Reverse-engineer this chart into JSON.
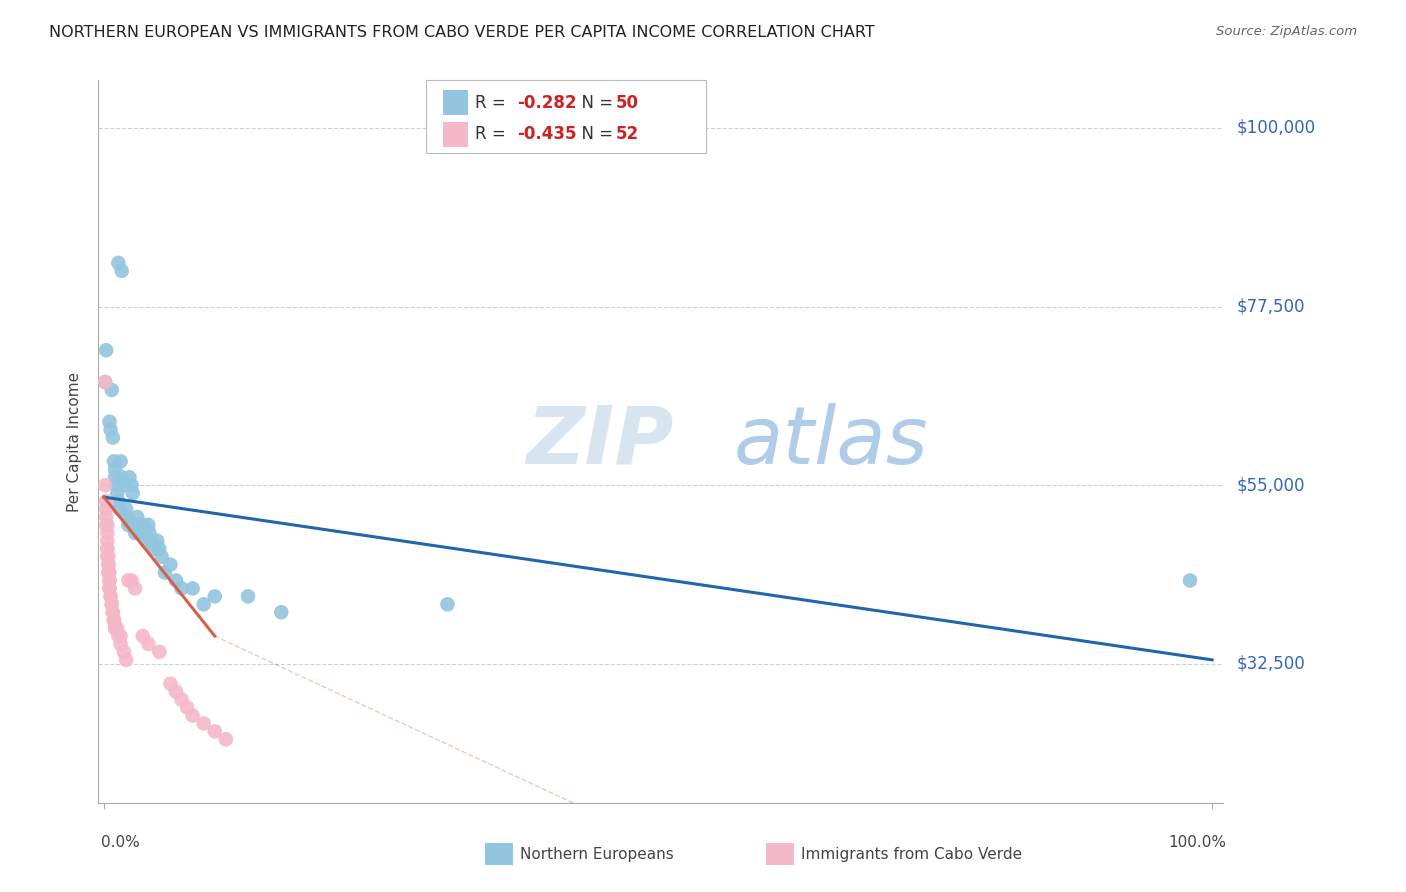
{
  "title": "NORTHERN EUROPEAN VS IMMIGRANTS FROM CABO VERDE PER CAPITA INCOME CORRELATION CHART",
  "source": "Source: ZipAtlas.com",
  "ylabel": "Per Capita Income",
  "ytick_labels": [
    "$32,500",
    "$55,000",
    "$77,500",
    "$100,000"
  ],
  "ytick_values": [
    32500,
    55000,
    77500,
    100000
  ],
  "ymin": 15000,
  "ymax": 106000,
  "xmin": -0.005,
  "xmax": 1.01,
  "legend1_r": "-0.282",
  "legend1_n": "50",
  "legend2_r": "-0.435",
  "legend2_n": "52",
  "blue_color": "#92c5de",
  "pink_color": "#f4b8c8",
  "line_blue": "#2166ac",
  "line_pink": "#d6604d",
  "blue_scatter": [
    [
      0.002,
      72000
    ],
    [
      0.013,
      83000
    ],
    [
      0.016,
      82000
    ],
    [
      0.001,
      68000
    ],
    [
      0.005,
      63000
    ],
    [
      0.006,
      62000
    ],
    [
      0.007,
      67000
    ],
    [
      0.008,
      61000
    ],
    [
      0.009,
      58000
    ],
    [
      0.01,
      57000
    ],
    [
      0.01,
      56000
    ],
    [
      0.011,
      55000
    ],
    [
      0.012,
      54000
    ],
    [
      0.013,
      53000
    ],
    [
      0.014,
      52000
    ],
    [
      0.015,
      58000
    ],
    [
      0.016,
      56000
    ],
    [
      0.018,
      55000
    ],
    [
      0.02,
      52000
    ],
    [
      0.021,
      51000
    ],
    [
      0.022,
      50000
    ],
    [
      0.023,
      56000
    ],
    [
      0.025,
      55000
    ],
    [
      0.026,
      54000
    ],
    [
      0.027,
      50000
    ],
    [
      0.028,
      49000
    ],
    [
      0.03,
      51000
    ],
    [
      0.031,
      50000
    ],
    [
      0.033,
      49000
    ],
    [
      0.035,
      50000
    ],
    [
      0.036,
      49000
    ],
    [
      0.038,
      48000
    ],
    [
      0.04,
      50000
    ],
    [
      0.041,
      49000
    ],
    [
      0.043,
      48000
    ],
    [
      0.045,
      47000
    ],
    [
      0.048,
      48000
    ],
    [
      0.05,
      47000
    ],
    [
      0.052,
      46000
    ],
    [
      0.055,
      44000
    ],
    [
      0.06,
      45000
    ],
    [
      0.065,
      43000
    ],
    [
      0.07,
      42000
    ],
    [
      0.08,
      42000
    ],
    [
      0.09,
      40000
    ],
    [
      0.1,
      41000
    ],
    [
      0.13,
      41000
    ],
    [
      0.16,
      39000
    ],
    [
      0.31,
      40000
    ],
    [
      0.98,
      43000
    ]
  ],
  "pink_scatter": [
    [
      0.001,
      68000
    ],
    [
      0.001,
      55000
    ],
    [
      0.002,
      53000
    ],
    [
      0.002,
      52000
    ],
    [
      0.002,
      51000
    ],
    [
      0.002,
      50000
    ],
    [
      0.003,
      50000
    ],
    [
      0.003,
      49000
    ],
    [
      0.003,
      48000
    ],
    [
      0.003,
      47000
    ],
    [
      0.003,
      47000
    ],
    [
      0.003,
      46000
    ],
    [
      0.004,
      46000
    ],
    [
      0.004,
      45000
    ],
    [
      0.004,
      45000
    ],
    [
      0.004,
      44000
    ],
    [
      0.004,
      44000
    ],
    [
      0.005,
      44000
    ],
    [
      0.005,
      43000
    ],
    [
      0.005,
      43000
    ],
    [
      0.005,
      42000
    ],
    [
      0.005,
      42000
    ],
    [
      0.006,
      41000
    ],
    [
      0.006,
      41000
    ],
    [
      0.007,
      40000
    ],
    [
      0.007,
      40000
    ],
    [
      0.008,
      39000
    ],
    [
      0.008,
      39000
    ],
    [
      0.009,
      38000
    ],
    [
      0.009,
      38000
    ],
    [
      0.01,
      37000
    ],
    [
      0.01,
      37000
    ],
    [
      0.012,
      37000
    ],
    [
      0.013,
      36000
    ],
    [
      0.015,
      36000
    ],
    [
      0.015,
      35000
    ],
    [
      0.018,
      34000
    ],
    [
      0.02,
      33000
    ],
    [
      0.022,
      43000
    ],
    [
      0.025,
      43000
    ],
    [
      0.028,
      42000
    ],
    [
      0.035,
      36000
    ],
    [
      0.04,
      35000
    ],
    [
      0.05,
      34000
    ],
    [
      0.06,
      30000
    ],
    [
      0.065,
      29000
    ],
    [
      0.07,
      28000
    ],
    [
      0.075,
      27000
    ],
    [
      0.08,
      26000
    ],
    [
      0.09,
      25000
    ],
    [
      0.1,
      24000
    ],
    [
      0.11,
      23000
    ]
  ],
  "blue_line": [
    [
      0.0,
      53500
    ],
    [
      1.0,
      33000
    ]
  ],
  "pink_line_solid": [
    [
      0.0,
      53500
    ],
    [
      0.1,
      36000
    ]
  ],
  "pink_line_dash": [
    [
      0.1,
      36000
    ],
    [
      0.5,
      10000
    ]
  ],
  "bg_color": "#ffffff",
  "grid_color": "#d0d0d0"
}
